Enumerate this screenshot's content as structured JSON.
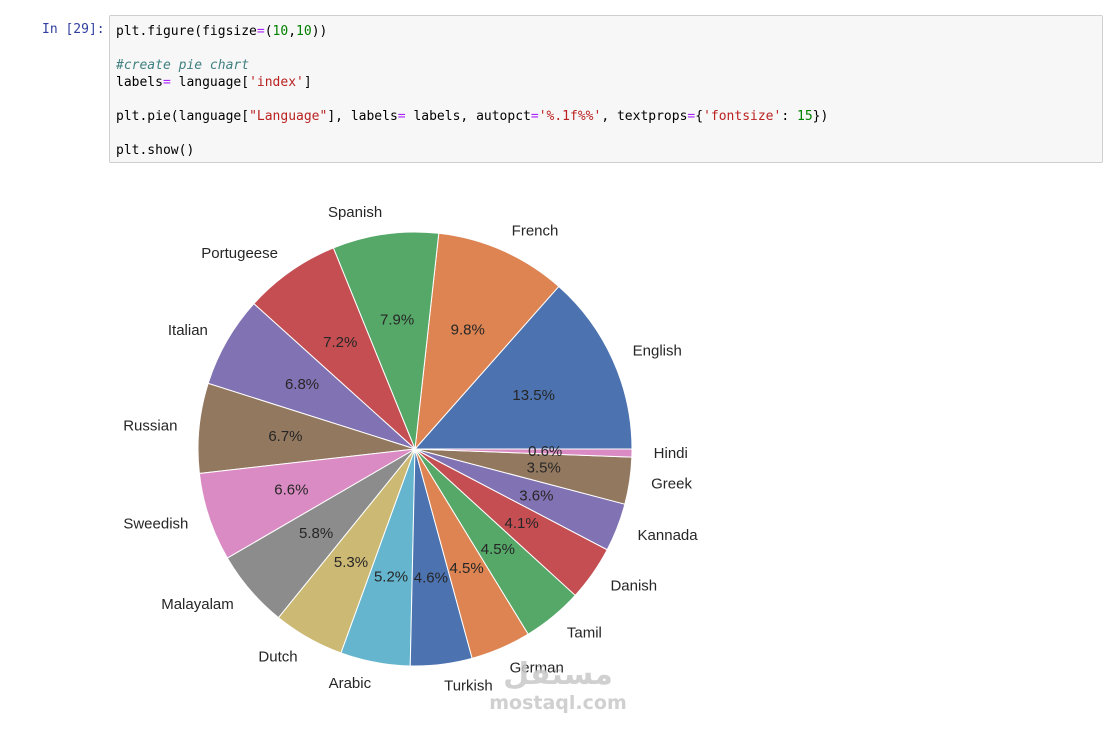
{
  "cell": {
    "prompt": "In [29]:",
    "code_lines": [
      [
        {
          "t": "plt.figure(figsize",
          "c": ""
        },
        {
          "t": "=",
          "c": "op"
        },
        {
          "t": "(",
          "c": ""
        },
        {
          "t": "10",
          "c": "num"
        },
        {
          "t": ",",
          "c": ""
        },
        {
          "t": "10",
          "c": "num"
        },
        {
          "t": "))",
          "c": ""
        }
      ],
      [],
      [
        {
          "t": "#create pie chart",
          "c": "com"
        }
      ],
      [
        {
          "t": "labels",
          "c": ""
        },
        {
          "t": "=",
          "c": "op"
        },
        {
          "t": " language[",
          "c": ""
        },
        {
          "t": "'index'",
          "c": "str"
        },
        {
          "t": "]",
          "c": ""
        }
      ],
      [],
      [
        {
          "t": "plt.pie(language[",
          "c": ""
        },
        {
          "t": "\"Language\"",
          "c": "str"
        },
        {
          "t": "], labels",
          "c": ""
        },
        {
          "t": "=",
          "c": "op"
        },
        {
          "t": " labels, autopct",
          "c": ""
        },
        {
          "t": "=",
          "c": "op"
        },
        {
          "t": "'%.1f%%'",
          "c": "str"
        },
        {
          "t": ", textprops",
          "c": ""
        },
        {
          "t": "=",
          "c": "op"
        },
        {
          "t": "{",
          "c": ""
        },
        {
          "t": "'fontsize'",
          "c": "str"
        },
        {
          "t": ": ",
          "c": ""
        },
        {
          "t": "15",
          "c": "num"
        },
        {
          "t": "})",
          "c": ""
        }
      ],
      [],
      [
        {
          "t": "plt.show()",
          "c": ""
        }
      ]
    ]
  },
  "colors": {
    "prompt": "#303f9f",
    "operator": "#aa22ff",
    "number": "#008000",
    "string": "#ba2121",
    "comment": "#408080"
  },
  "chart_data": {
    "type": "pie",
    "start_angle_deg": 0,
    "direction": "counterclockwise",
    "slices": [
      {
        "label": "English",
        "pct": "13.5%",
        "value": 13.5,
        "color": "#4c72b0"
      },
      {
        "label": "French",
        "pct": "9.8%",
        "value": 9.8,
        "color": "#dd8452"
      },
      {
        "label": "Spanish",
        "pct": "7.9%",
        "value": 7.9,
        "color": "#55a868"
      },
      {
        "label": "Portugeese",
        "pct": "7.2%",
        "value": 7.2,
        "color": "#c44e52"
      },
      {
        "label": "Italian",
        "pct": "6.8%",
        "value": 6.8,
        "color": "#8172b3"
      },
      {
        "label": "Russian",
        "pct": "6.7%",
        "value": 6.7,
        "color": "#937860"
      },
      {
        "label": "Sweedish",
        "pct": "6.6%",
        "value": 6.6,
        "color": "#da8bc3"
      },
      {
        "label": "Malayalam",
        "pct": "5.8%",
        "value": 5.8,
        "color": "#8c8c8c"
      },
      {
        "label": "Dutch",
        "pct": "5.3%",
        "value": 5.3,
        "color": "#ccb974"
      },
      {
        "label": "Arabic",
        "pct": "5.2%",
        "value": 5.2,
        "color": "#64b5cd"
      },
      {
        "label": "Turkish",
        "pct": "4.6%",
        "value": 4.6,
        "color": "#4c72b0"
      },
      {
        "label": "German",
        "pct": "4.5%",
        "value": 4.5,
        "color": "#dd8452"
      },
      {
        "label": "Tamil",
        "pct": "4.5%",
        "value": 4.5,
        "color": "#55a868"
      },
      {
        "label": "Danish",
        "pct": "4.1%",
        "value": 4.1,
        "color": "#c44e52"
      },
      {
        "label": "Kannada",
        "pct": "3.6%",
        "value": 3.6,
        "color": "#8172b3"
      },
      {
        "label": "Greek",
        "pct": "3.5%",
        "value": 3.5,
        "color": "#937860"
      },
      {
        "label": "Hindi",
        "pct": "0.6%",
        "value": 0.6,
        "color": "#da8bc3"
      }
    ]
  },
  "watermark": {
    "arabic": "مستقل",
    "latin": "mostaql.com"
  }
}
